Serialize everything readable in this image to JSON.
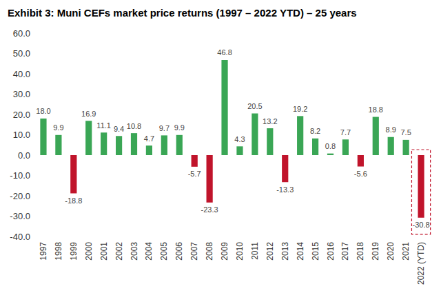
{
  "chart_data": {
    "type": "bar",
    "title": "Exhibit 3: Muni CEFs market price returns (1997 – 2022 YTD) – 25 years",
    "categories": [
      "1997",
      "1998",
      "1999",
      "2000",
      "2001",
      "2002",
      "2003",
      "2004",
      "2005",
      "2006",
      "2007",
      "2008",
      "2009",
      "2010",
      "2011",
      "2012",
      "2013",
      "2014",
      "2015",
      "2016",
      "2017",
      "2018",
      "2019",
      "2020",
      "2021",
      "2022 (YTD)"
    ],
    "values": [
      18.0,
      9.9,
      -18.8,
      16.9,
      11.1,
      9.4,
      10.8,
      4.7,
      9.7,
      9.9,
      -5.7,
      -23.3,
      46.8,
      4.3,
      20.5,
      13.2,
      -13.3,
      19.2,
      8.2,
      0.8,
      7.7,
      -5.6,
      18.8,
      8.9,
      7.5,
      -30.8
    ],
    "value_labels": [
      "18.0",
      "9.9",
      "-18.8",
      "16.9",
      "11.1",
      "9.4",
      "10.8",
      "4.7",
      "9.7",
      "9.9",
      "-5.7",
      "-23.3",
      "46.8",
      "4.3",
      "20.5",
      "13.2",
      "-13.3",
      "19.2",
      "8.2",
      "0.8",
      "7.7",
      "-5.6",
      "18.8",
      "8.9",
      "7.5",
      "-30.8"
    ],
    "colors": [
      "#3aa655",
      "#3aa655",
      "#c0142b",
      "#3aa655",
      "#3aa655",
      "#3aa655",
      "#3aa655",
      "#3aa655",
      "#3aa655",
      "#3aa655",
      "#c0142b",
      "#c0142b",
      "#3aa655",
      "#3aa655",
      "#3aa655",
      "#3aa655",
      "#c0142b",
      "#3aa655",
      "#3aa655",
      "#3aa655",
      "#3aa655",
      "#c0142b",
      "#3aa655",
      "#3aa655",
      "#3aa655",
      "#c0142b"
    ],
    "ylim": [
      -40,
      60
    ],
    "yticks": [
      {
        "value": -40,
        "label": "-40.0"
      },
      {
        "value": -30,
        "label": "-30.0"
      },
      {
        "value": -20,
        "label": "-20.0"
      },
      {
        "value": -10,
        "label": "-10.0"
      },
      {
        "value": 0,
        "label": "0.0"
      },
      {
        "value": 10,
        "label": "10.0"
      },
      {
        "value": 20,
        "label": "20.0"
      },
      {
        "value": 30,
        "label": "30.0"
      },
      {
        "value": 40,
        "label": "40.0"
      },
      {
        "value": 50,
        "label": "50.0"
      },
      {
        "value": 60,
        "label": "60.0"
      }
    ],
    "data_labels": true,
    "grid": false
  }
}
